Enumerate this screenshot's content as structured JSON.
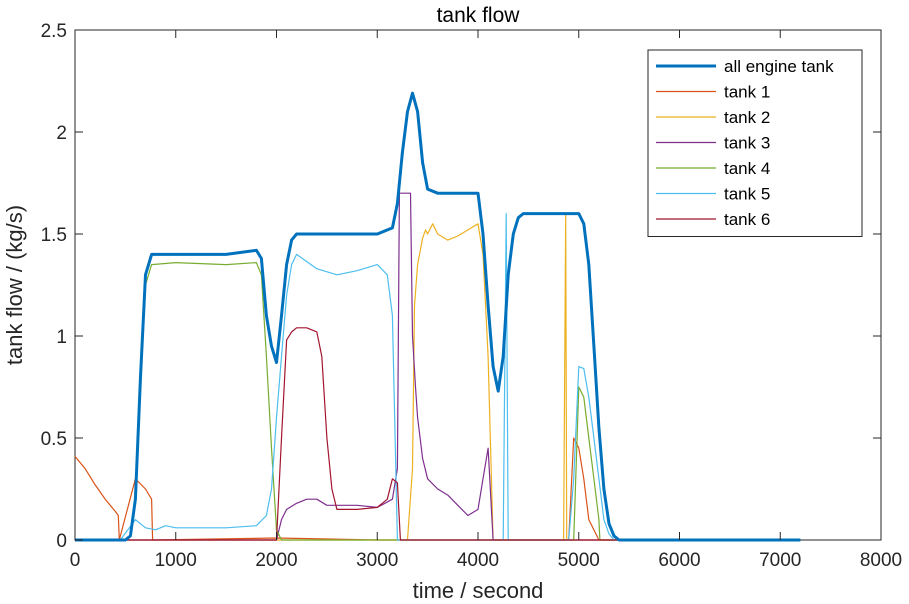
{
  "chart_data": {
    "type": "line",
    "title": "tank flow",
    "xlabel": "time / second",
    "ylabel": "tank flow / (kg/s)",
    "xlim": [
      0,
      8000
    ],
    "ylim": [
      0,
      2.5
    ],
    "xticks": [
      0,
      1000,
      2000,
      3000,
      4000,
      5000,
      6000,
      7000,
      8000
    ],
    "yticks": [
      0,
      0.5,
      1,
      1.5,
      2,
      2.5
    ],
    "xtick_labels": [
      "0",
      "1000",
      "2000",
      "3000",
      "4000",
      "5000",
      "6000",
      "7000",
      "8000"
    ],
    "ytick_labels": [
      "0",
      "0.5",
      "1",
      "1.5",
      "2",
      "2.5"
    ],
    "grid": false,
    "legend_position": "top-right",
    "series": [
      {
        "name": "all engine tank",
        "color": "#0072BD",
        "thick": true,
        "x": [
          0,
          500,
          550,
          600,
          650,
          700,
          760,
          1000,
          1500,
          1800,
          1850,
          1900,
          1950,
          2000,
          2050,
          2100,
          2150,
          2200,
          3000,
          3150,
          3200,
          3250,
          3300,
          3350,
          3400,
          3450,
          3500,
          3600,
          3700,
          4000,
          4050,
          4100,
          4150,
          4200,
          4250,
          4300,
          4350,
          4400,
          4450,
          4500,
          5000,
          5050,
          5100,
          5150,
          5200,
          5250,
          5300,
          5350,
          5400,
          7200
        ],
        "y": [
          0,
          0,
          0.02,
          0.2,
          0.8,
          1.3,
          1.4,
          1.4,
          1.4,
          1.42,
          1.38,
          1.1,
          0.95,
          0.87,
          1.1,
          1.35,
          1.47,
          1.5,
          1.5,
          1.53,
          1.65,
          1.9,
          2.1,
          2.19,
          2.1,
          1.85,
          1.72,
          1.7,
          1.7,
          1.7,
          1.5,
          1.15,
          0.85,
          0.73,
          0.9,
          1.3,
          1.5,
          1.58,
          1.6,
          1.6,
          1.6,
          1.55,
          1.35,
          0.95,
          0.55,
          0.25,
          0.08,
          0.02,
          0,
          0
        ]
      },
      {
        "name": "tank 1",
        "color": "#D95319",
        "x": [
          0,
          100,
          200,
          300,
          400,
          430,
          440,
          600,
          700,
          760,
          770,
          2000,
          3000,
          4000,
          4800,
          4900,
          4950,
          5000,
          5050,
          5100,
          5200,
          7200
        ],
        "y": [
          0.41,
          0.35,
          0.27,
          0.2,
          0.14,
          0.12,
          0.0,
          0.3,
          0.25,
          0.2,
          0.0,
          0.01,
          0.0,
          0.0,
          0.0,
          0.0,
          0.5,
          0.45,
          0.3,
          0.1,
          0.0,
          0
        ]
      },
      {
        "name": "tank 2",
        "color": "#EDB120",
        "x": [
          0,
          3300,
          3350,
          3370,
          3400,
          3450,
          3480,
          3500,
          3550,
          3600,
          3700,
          3800,
          3900,
          4000,
          4050,
          4100,
          4150,
          4800,
          4850,
          4870,
          4880,
          4900,
          5000,
          7200
        ],
        "y": [
          0,
          0,
          0.35,
          1.15,
          1.35,
          1.48,
          1.52,
          1.5,
          1.55,
          1.5,
          1.47,
          1.49,
          1.52,
          1.55,
          1.4,
          0.9,
          0.0,
          0.0,
          0.0,
          1.6,
          0.0,
          0.0,
          0.0,
          0
        ]
      },
      {
        "name": "tank 3",
        "color": "#7E2F8E",
        "x": [
          0,
          2000,
          2050,
          2100,
          2200,
          2300,
          2400,
          2500,
          2600,
          2800,
          3000,
          3150,
          3200,
          3220,
          3230,
          3330,
          3350,
          3380,
          3400,
          3450,
          3500,
          3600,
          3700,
          3800,
          3900,
          4000,
          4050,
          4100,
          4150,
          7200
        ],
        "y": [
          0,
          0,
          0.1,
          0.15,
          0.18,
          0.2,
          0.2,
          0.17,
          0.17,
          0.17,
          0.16,
          0.2,
          0.35,
          1.7,
          1.7,
          1.7,
          1.0,
          0.75,
          0.6,
          0.4,
          0.3,
          0.25,
          0.22,
          0.17,
          0.12,
          0.15,
          0.3,
          0.45,
          0.0,
          0
        ]
      },
      {
        "name": "tank 4",
        "color": "#77AC30",
        "x": [
          0,
          500,
          550,
          600,
          650,
          700,
          760,
          1000,
          1500,
          1800,
          1850,
          1900,
          1950,
          2000,
          2050,
          2100,
          4950,
          5000,
          5050,
          5100,
          5150,
          5200,
          5210,
          7200
        ],
        "y": [
          0,
          0,
          0.02,
          0.2,
          0.8,
          1.25,
          1.35,
          1.36,
          1.35,
          1.36,
          1.3,
          0.9,
          0.45,
          0.05,
          0.0,
          0.0,
          0.0,
          0.75,
          0.7,
          0.5,
          0.3,
          0.1,
          0.0,
          0
        ]
      },
      {
        "name": "tank 5",
        "color": "#4DBEEE",
        "x": [
          0,
          400,
          450,
          600,
          700,
          800,
          900,
          1000,
          1100,
          1200,
          1500,
          1800,
          1900,
          1950,
          2000,
          2050,
          2100,
          2150,
          2200,
          2400,
          2600,
          2800,
          3000,
          3100,
          3150,
          3200,
          4200,
          4250,
          4280,
          4300,
          4900,
          4950,
          5000,
          5050,
          5100,
          5150,
          5200,
          5250,
          5300,
          5350,
          7200
        ],
        "y": [
          0,
          0,
          0,
          0.1,
          0.06,
          0.05,
          0.07,
          0.06,
          0.06,
          0.06,
          0.06,
          0.07,
          0.12,
          0.25,
          0.6,
          0.9,
          1.2,
          1.35,
          1.4,
          1.33,
          1.3,
          1.32,
          1.35,
          1.3,
          1.1,
          0.0,
          0.0,
          0.0,
          1.6,
          0.0,
          0.0,
          0.3,
          0.85,
          0.84,
          0.7,
          0.5,
          0.3,
          0.1,
          0.03,
          0.0,
          0
        ]
      },
      {
        "name": "tank 6",
        "color": "#A2142F",
        "x": [
          0,
          2000,
          2050,
          2100,
          2150,
          2200,
          2300,
          2400,
          2450,
          2500,
          2550,
          2600,
          2800,
          3000,
          3100,
          3150,
          3200,
          3230,
          3240,
          7200
        ],
        "y": [
          0,
          0,
          0.5,
          0.98,
          1.02,
          1.04,
          1.04,
          1.02,
          0.9,
          0.5,
          0.25,
          0.15,
          0.15,
          0.16,
          0.2,
          0.3,
          0.28,
          0.0,
          0.0,
          0
        ]
      }
    ]
  }
}
